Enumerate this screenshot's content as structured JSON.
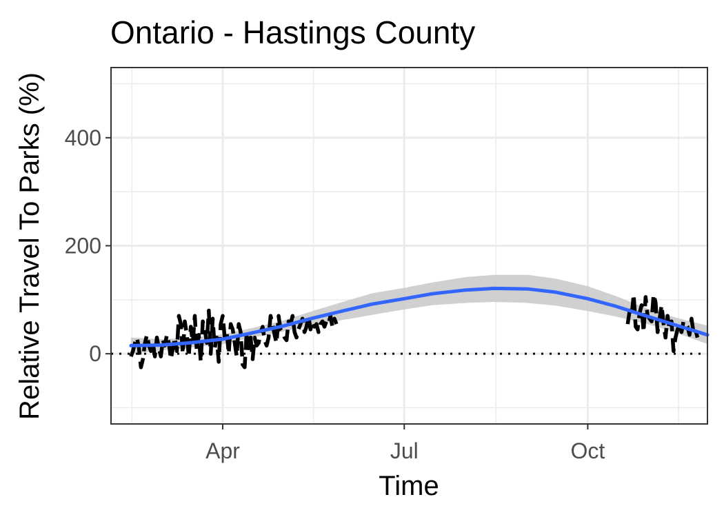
{
  "chart_data": {
    "type": "line",
    "title": "Ontario - Hastings County",
    "xlabel": "Time",
    "ylabel": "Relative Travel To Parks (%)",
    "x_ticks": [
      "Apr",
      "Jul",
      "Oct"
    ],
    "y_ticks": [
      0,
      200,
      400
    ],
    "ylim": [
      -130,
      530
    ],
    "xlim": [
      "2020-02-05",
      "2020-11-30"
    ],
    "grid": true,
    "reference_line": 0,
    "colors": {
      "observed": "#000000",
      "smooth": "#3366ff",
      "band": "#c8c8c8",
      "grid": "#ebebeb",
      "border": "#333333",
      "reference": "#000000"
    },
    "series": [
      {
        "style": "dashed",
        "x": [
          "2020-02-15",
          "2020-02-16",
          "2020-02-17",
          "2020-02-18",
          "2020-02-19",
          "2020-02-20",
          "2020-02-21",
          "2020-02-22",
          "2020-02-23",
          "2020-02-24",
          "2020-02-25",
          "2020-02-26",
          "2020-02-27",
          "2020-02-28",
          "2020-02-29",
          "2020-03-01",
          "2020-03-02",
          "2020-03-03",
          "2020-03-04",
          "2020-03-05",
          "2020-03-06",
          "2020-03-07",
          "2020-03-08",
          "2020-03-09",
          "2020-03-10",
          "2020-03-11",
          "2020-03-12",
          "2020-03-13",
          "2020-03-14",
          "2020-03-15",
          "2020-03-16",
          "2020-03-17",
          "2020-03-18",
          "2020-03-19",
          "2020-03-20",
          "2020-03-21",
          "2020-03-22",
          "2020-03-23",
          "2020-03-24",
          "2020-03-25",
          "2020-03-26",
          "2020-03-27",
          "2020-03-28",
          "2020-03-29",
          "2020-03-30",
          "2020-03-31",
          "2020-04-01",
          "2020-04-02",
          "2020-04-03",
          "2020-04-04",
          "2020-04-05",
          "2020-04-06",
          "2020-04-07",
          "2020-04-08",
          "2020-04-09",
          "2020-04-10",
          "2020-04-11",
          "2020-04-12",
          "2020-04-13",
          "2020-04-14",
          "2020-04-15",
          "2020-04-16",
          "2020-04-17",
          "2020-04-18",
          "2020-04-19",
          "2020-04-20",
          "2020-04-21",
          "2020-04-22",
          "2020-04-23",
          "2020-04-24",
          "2020-04-25",
          "2020-04-26",
          "2020-04-27",
          "2020-04-28",
          "2020-04-29",
          "2020-04-30",
          "2020-05-01",
          "2020-05-02",
          "2020-05-03",
          "2020-05-04",
          "2020-05-05",
          "2020-05-06",
          "2020-05-07",
          "2020-05-08",
          "2020-05-09",
          "2020-05-10",
          "2020-05-11",
          "2020-05-12",
          "2020-05-13",
          "2020-05-14",
          "2020-05-15",
          "2020-05-16",
          "2020-05-17",
          "2020-05-18",
          "2020-05-19",
          "2020-05-20",
          "2020-05-21",
          "2020-05-22",
          "2020-05-23",
          "2020-05-24",
          "2020-05-25",
          "2020-05-26",
          "2020-05-27",
          "2020-05-28"
        ],
        "y": [
          -5,
          5,
          20,
          30,
          10,
          -25,
          -10,
          20,
          35,
          15,
          5,
          20,
          -5,
          30,
          10,
          -5,
          25,
          15,
          35,
          20,
          -10,
          10,
          30,
          5,
          70,
          55,
          0,
          60,
          35,
          -5,
          50,
          20,
          70,
          5,
          35,
          -15,
          60,
          45,
          20,
          80,
          0,
          65,
          10,
          30,
          -15,
          55,
          70,
          30,
          40,
          0,
          55,
          45,
          20,
          -5,
          55,
          40,
          -20,
          -25,
          40,
          10,
          30,
          -10,
          30,
          15,
          20,
          40,
          50,
          25,
          15,
          30,
          70,
          55,
          35,
          20,
          70,
          45,
          40,
          30,
          25,
          60,
          55,
          70,
          40,
          30,
          45,
          55,
          65,
          40,
          50,
          70,
          45,
          60,
          50,
          55,
          40,
          55,
          60,
          50,
          60,
          55,
          70,
          50,
          65,
          55
        ]
      },
      {
        "style": "dashed",
        "x": [
          "2020-10-21",
          "2020-10-22",
          "2020-10-23",
          "2020-10-24",
          "2020-10-25",
          "2020-10-26",
          "2020-10-27",
          "2020-10-28",
          "2020-10-29",
          "2020-10-30",
          "2020-10-31",
          "2020-11-01",
          "2020-11-02",
          "2020-11-03",
          "2020-11-04",
          "2020-11-05",
          "2020-11-06",
          "2020-11-07",
          "2020-11-08",
          "2020-11-09",
          "2020-11-10",
          "2020-11-11",
          "2020-11-12",
          "2020-11-13",
          "2020-11-14",
          "2020-11-15",
          "2020-11-16",
          "2020-11-17",
          "2020-11-18",
          "2020-11-19",
          "2020-11-20",
          "2020-11-21",
          "2020-11-22",
          "2020-11-23",
          "2020-11-24",
          "2020-11-25"
        ],
        "y": [
          55,
          80,
          70,
          110,
          50,
          45,
          75,
          90,
          40,
          105,
          70,
          65,
          60,
          110,
          95,
          40,
          65,
          90,
          55,
          30,
          70,
          45,
          60,
          5,
          30,
          45,
          55,
          40,
          60,
          55,
          50,
          35,
          65,
          40,
          45,
          30
        ]
      }
    ],
    "smooth": {
      "name": "fit",
      "x": [
        "2020-02-15",
        "2020-03-01",
        "2020-03-15",
        "2020-04-01",
        "2020-04-15",
        "2020-05-01",
        "2020-05-15",
        "2020-06-01",
        "2020-06-15",
        "2020-07-01",
        "2020-07-15",
        "2020-08-01",
        "2020-08-15",
        "2020-09-01",
        "2020-09-15",
        "2020-10-01",
        "2020-10-15",
        "2020-11-01",
        "2020-11-15",
        "2020-11-30"
      ],
      "y": [
        15,
        16,
        20,
        27,
        38,
        51,
        65,
        80,
        92,
        102,
        111,
        118,
        121,
        120,
        114,
        102,
        88,
        68,
        52,
        35
      ],
      "lower": [
        0,
        6,
        11,
        18,
        29,
        41,
        52,
        63,
        72,
        82,
        90,
        94,
        96,
        94,
        89,
        79,
        69,
        54,
        38,
        18
      ],
      "upper": [
        30,
        27,
        29,
        36,
        47,
        61,
        78,
        97,
        112,
        122,
        132,
        142,
        146,
        146,
        139,
        125,
        107,
        82,
        66,
        52
      ]
    }
  }
}
